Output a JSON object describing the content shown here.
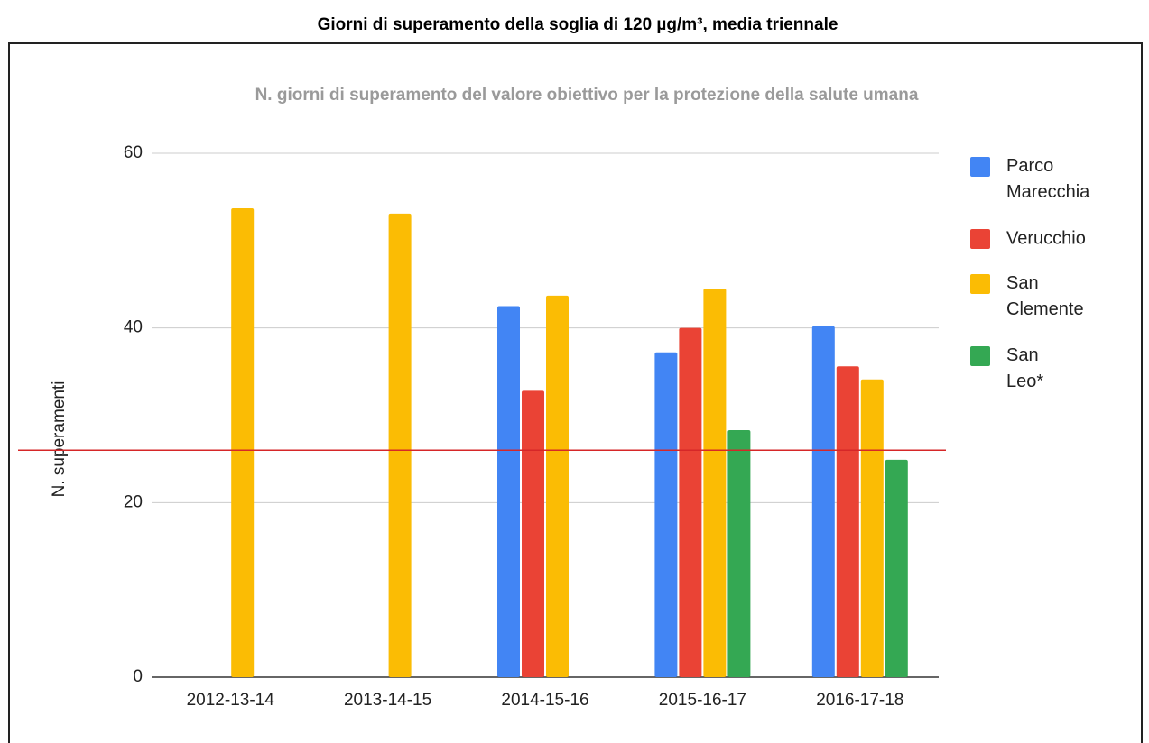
{
  "page_title": "Giorni di superamento della soglia di 120 µg/m³, media triennale",
  "chart_data": {
    "type": "bar",
    "title": "N. giorni di superamento del valore obiettivo per la protezione della salute umana",
    "y_label": "N. superamenti",
    "categories": [
      "2012-13-14",
      "2013-14-15",
      "2014-15-16",
      "2015-16-17",
      "2016-17-18"
    ],
    "series": [
      {
        "name": "Parco Marecchia",
        "color": "#4285f4",
        "values": [
          null,
          null,
          42.5,
          37.2,
          40.2
        ]
      },
      {
        "name": "Verucchio",
        "color": "#ea4335",
        "values": [
          null,
          null,
          32.8,
          40,
          35.6
        ]
      },
      {
        "name": "San Clemente",
        "color": "#fbbc04",
        "values": [
          53.7,
          53.1,
          43.7,
          44.5,
          34.1
        ]
      },
      {
        "name": "San Leo*",
        "color": "#34a853",
        "values": [
          null,
          null,
          null,
          28.3,
          24.9
        ]
      }
    ],
    "threshold": 26,
    "threshold_color": "#d62728",
    "ylim": [
      0,
      60
    ],
    "yticks": [
      0,
      20,
      40,
      60
    ],
    "grid": true,
    "legend": "right"
  }
}
